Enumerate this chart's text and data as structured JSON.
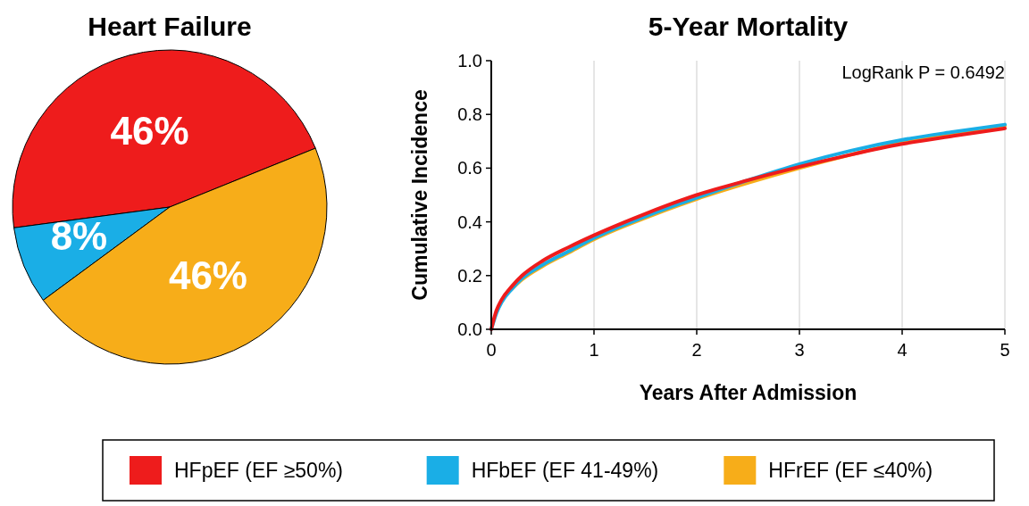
{
  "chart_data": [
    {
      "type": "pie",
      "title": "Heart Failure",
      "categories": [
        "HFpEF (EF ≥50%)",
        "HFbEF (EF 41-49%)",
        "HFrEF (EF ≤40%)"
      ],
      "values": [
        46,
        8,
        46
      ],
      "colors": [
        "#ee1c1c",
        "#1aaee6",
        "#f7ad19"
      ],
      "value_labels": [
        "46%",
        "8%",
        "46%"
      ],
      "legend": "bottom"
    },
    {
      "type": "line",
      "title": "5-Year Mortality",
      "xlabel": "Years After Admission",
      "ylabel": "Cumulative Incidence",
      "xlim": [
        0,
        5
      ],
      "ylim": [
        0,
        1
      ],
      "xticks": [
        0,
        1,
        2,
        3,
        4,
        5
      ],
      "yticks": [
        {
          "value": 0,
          "label": "0.0"
        },
        {
          "value": 0.2,
          "label": "0.2"
        },
        {
          "value": 0.4,
          "label": "0.4"
        },
        {
          "value": 0.6,
          "label": "0.6"
        },
        {
          "value": 0.8,
          "label": "0.8"
        },
        {
          "value": 1,
          "label": "1.0"
        }
      ],
      "grid": "x",
      "annotations": [
        "LogRank P = 0.6492"
      ],
      "x": [
        0,
        0.05,
        0.1,
        0.2,
        0.3,
        0.5,
        0.75,
        1,
        1.5,
        2,
        2.5,
        3,
        3.5,
        4,
        4.5,
        5
      ],
      "series": [
        {
          "color": "#ee1c1c",
          "values": [
            0,
            0.07,
            0.11,
            0.16,
            0.2,
            0.255,
            0.305,
            0.35,
            0.43,
            0.5,
            0.555,
            0.605,
            0.65,
            0.69,
            0.72,
            0.748
          ]
        },
        {
          "color": "#1aaee6",
          "values": [
            0,
            0.06,
            0.1,
            0.15,
            0.19,
            0.24,
            0.29,
            0.34,
            0.42,
            0.49,
            0.555,
            0.615,
            0.665,
            0.705,
            0.735,
            0.762
          ]
        },
        {
          "color": "#f7ad19",
          "values": [
            null,
            null,
            null,
            0.15,
            0.185,
            0.235,
            0.285,
            0.335,
            0.415,
            0.485,
            0.545,
            0.6,
            0.65,
            0.695,
            0.73,
            0.758
          ]
        }
      ]
    }
  ]
}
